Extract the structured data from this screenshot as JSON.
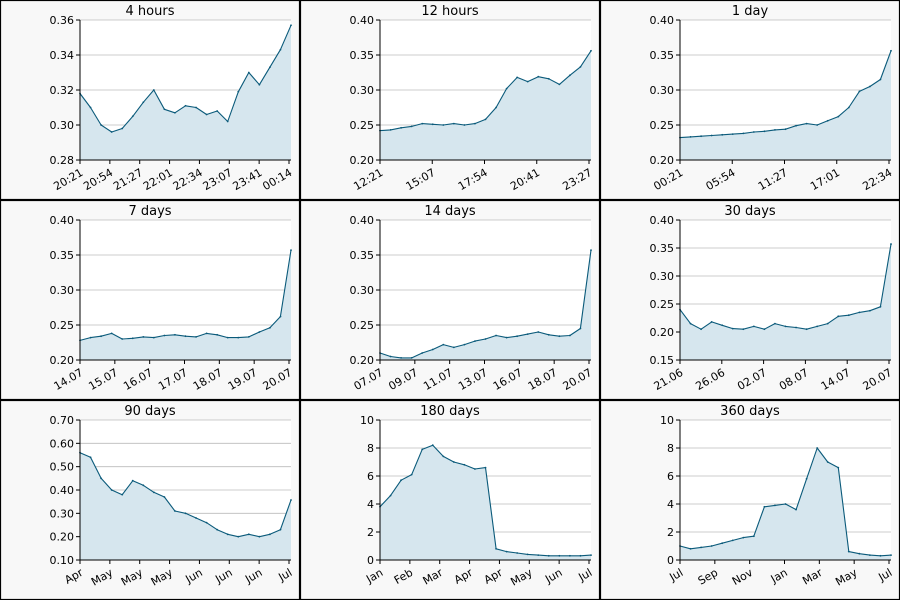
{
  "colors": {
    "line": "#0a5a7a",
    "fill": "#d6e6ee",
    "grid": "#bbbbbb",
    "panel_bg": "#f8f8f8",
    "plot_bg": "#ffffff",
    "border": "#000000"
  },
  "chart_data": [
    {
      "type": "area",
      "title": "4 hours",
      "x_ticks": [
        "20:21",
        "20:54",
        "21:27",
        "22:01",
        "22:34",
        "23:07",
        "23:41",
        "00:14"
      ],
      "y_ticks": [
        "0.28",
        "0.30",
        "0.32",
        "0.34",
        "0.36"
      ],
      "ylim": [
        0.28,
        0.36
      ],
      "grid": true,
      "series": [
        {
          "x": [
            0,
            5,
            10,
            15,
            20,
            25,
            30,
            35,
            40,
            45,
            50,
            55,
            60,
            65,
            70,
            75,
            80,
            85,
            90,
            95,
            100
          ],
          "y": [
            0.318,
            0.31,
            0.3,
            0.296,
            0.298,
            0.305,
            0.313,
            0.32,
            0.309,
            0.307,
            0.311,
            0.31,
            0.306,
            0.308,
            0.302,
            0.319,
            0.33,
            0.323,
            0.333,
            0.343,
            0.357
          ]
        }
      ]
    },
    {
      "type": "area",
      "title": "12 hours",
      "x_ticks": [
        "12:21",
        "15:07",
        "17:54",
        "20:41",
        "23:27"
      ],
      "y_ticks": [
        "0.20",
        "0.25",
        "0.30",
        "0.35",
        "0.40"
      ],
      "ylim": [
        0.2,
        0.4
      ],
      "grid": true,
      "series": [
        {
          "x": [
            0,
            5,
            10,
            15,
            20,
            25,
            30,
            35,
            40,
            45,
            50,
            55,
            60,
            65,
            70,
            75,
            80,
            85,
            90,
            95,
            100
          ],
          "y": [
            0.242,
            0.243,
            0.246,
            0.248,
            0.252,
            0.251,
            0.25,
            0.252,
            0.25,
            0.252,
            0.258,
            0.275,
            0.302,
            0.318,
            0.312,
            0.319,
            0.316,
            0.308,
            0.321,
            0.333,
            0.356
          ]
        }
      ]
    },
    {
      "type": "area",
      "title": "1 day",
      "x_ticks": [
        "00:21",
        "05:54",
        "11:27",
        "17:01",
        "22:34"
      ],
      "y_ticks": [
        "0.20",
        "0.25",
        "0.30",
        "0.35",
        "0.40"
      ],
      "ylim": [
        0.2,
        0.4
      ],
      "grid": true,
      "series": [
        {
          "x": [
            0,
            5,
            10,
            15,
            20,
            25,
            30,
            35,
            40,
            45,
            50,
            55,
            60,
            65,
            70,
            75,
            80,
            85,
            90,
            95,
            100
          ],
          "y": [
            0.232,
            0.233,
            0.234,
            0.235,
            0.236,
            0.237,
            0.238,
            0.24,
            0.241,
            0.243,
            0.244,
            0.249,
            0.252,
            0.25,
            0.256,
            0.262,
            0.275,
            0.298,
            0.305,
            0.315,
            0.356
          ]
        }
      ]
    },
    {
      "type": "area",
      "title": "7 days",
      "x_ticks": [
        "14.07",
        "15.07",
        "16.07",
        "17.07",
        "18.07",
        "19.07",
        "20.07"
      ],
      "y_ticks": [
        "0.20",
        "0.25",
        "0.30",
        "0.35",
        "0.40"
      ],
      "ylim": [
        0.2,
        0.4
      ],
      "grid": true,
      "series": [
        {
          "x": [
            0,
            5,
            10,
            15,
            20,
            25,
            30,
            35,
            40,
            45,
            50,
            55,
            60,
            65,
            70,
            75,
            80,
            85,
            90,
            95,
            100
          ],
          "y": [
            0.228,
            0.232,
            0.234,
            0.238,
            0.23,
            0.231,
            0.233,
            0.232,
            0.235,
            0.236,
            0.234,
            0.233,
            0.238,
            0.236,
            0.232,
            0.232,
            0.233,
            0.24,
            0.246,
            0.262,
            0.357
          ]
        }
      ]
    },
    {
      "type": "area",
      "title": "14 days",
      "x_ticks": [
        "07.07",
        "09.07",
        "11.07",
        "13.07",
        "16.07",
        "18.07",
        "20.07"
      ],
      "y_ticks": [
        "0.20",
        "0.25",
        "0.30",
        "0.35",
        "0.40"
      ],
      "ylim": [
        0.2,
        0.4
      ],
      "grid": true,
      "series": [
        {
          "x": [
            0,
            5,
            10,
            15,
            20,
            25,
            30,
            35,
            40,
            45,
            50,
            55,
            60,
            65,
            70,
            75,
            80,
            85,
            90,
            95,
            100
          ],
          "y": [
            0.21,
            0.205,
            0.203,
            0.203,
            0.21,
            0.215,
            0.222,
            0.218,
            0.222,
            0.227,
            0.23,
            0.235,
            0.232,
            0.234,
            0.237,
            0.24,
            0.236,
            0.234,
            0.235,
            0.245,
            0.357
          ]
        }
      ]
    },
    {
      "type": "area",
      "title": "30 days",
      "x_ticks": [
        "21.06",
        "26.06",
        "02.07",
        "08.07",
        "14.07",
        "20.07"
      ],
      "y_ticks": [
        "0.15",
        "0.20",
        "0.25",
        "0.30",
        "0.35",
        "0.40"
      ],
      "ylim": [
        0.15,
        0.4
      ],
      "grid": true,
      "series": [
        {
          "x": [
            0,
            5,
            10,
            15,
            20,
            25,
            30,
            35,
            40,
            45,
            50,
            55,
            60,
            65,
            70,
            75,
            80,
            85,
            90,
            95,
            100
          ],
          "y": [
            0.24,
            0.215,
            0.205,
            0.218,
            0.212,
            0.206,
            0.205,
            0.21,
            0.205,
            0.215,
            0.21,
            0.208,
            0.205,
            0.21,
            0.215,
            0.228,
            0.23,
            0.235,
            0.238,
            0.245,
            0.357
          ]
        }
      ]
    },
    {
      "type": "area",
      "title": "90 days",
      "x_ticks": [
        "Apr",
        "May",
        "May",
        "May",
        "Jun",
        "Jun",
        "Jun",
        "Jul"
      ],
      "y_ticks": [
        "0.10",
        "0.20",
        "0.30",
        "0.40",
        "0.50",
        "0.60",
        "0.70"
      ],
      "ylim": [
        0.1,
        0.7
      ],
      "grid": true,
      "series": [
        {
          "x": [
            0,
            5,
            10,
            15,
            20,
            25,
            30,
            35,
            40,
            45,
            50,
            55,
            60,
            65,
            70,
            75,
            80,
            85,
            90,
            95,
            100
          ],
          "y": [
            0.56,
            0.54,
            0.45,
            0.4,
            0.38,
            0.44,
            0.42,
            0.39,
            0.37,
            0.31,
            0.3,
            0.28,
            0.26,
            0.23,
            0.21,
            0.2,
            0.21,
            0.2,
            0.21,
            0.23,
            0.357
          ]
        }
      ]
    },
    {
      "type": "area",
      "title": "180 days",
      "x_ticks": [
        "Jan",
        "Feb",
        "Mar",
        "Apr",
        "Apr",
        "May",
        "Jun",
        "Jul"
      ],
      "y_ticks": [
        "0",
        "2",
        "4",
        "6",
        "8",
        "10"
      ],
      "ylim": [
        0,
        10
      ],
      "grid": true,
      "series": [
        {
          "x": [
            0,
            5,
            10,
            15,
            20,
            25,
            30,
            35,
            40,
            45,
            50,
            55,
            60,
            65,
            70,
            75,
            80,
            85,
            90,
            95,
            100
          ],
          "y": [
            3.8,
            4.6,
            5.7,
            6.1,
            7.9,
            8.2,
            7.4,
            7.0,
            6.8,
            6.5,
            6.6,
            0.8,
            0.6,
            0.5,
            0.4,
            0.35,
            0.3,
            0.3,
            0.3,
            0.3,
            0.35
          ]
        }
      ]
    },
    {
      "type": "area",
      "title": "360 days",
      "x_ticks": [
        "Jul",
        "Sep",
        "Nov",
        "Jan",
        "Mar",
        "May",
        "Jul"
      ],
      "y_ticks": [
        "0",
        "2",
        "4",
        "6",
        "8",
        "10"
      ],
      "ylim": [
        0,
        10
      ],
      "grid": true,
      "series": [
        {
          "x": [
            0,
            5,
            10,
            15,
            20,
            25,
            30,
            35,
            40,
            45,
            50,
            55,
            60,
            65,
            70,
            75,
            80,
            85,
            90,
            95,
            100
          ],
          "y": [
            1.0,
            0.8,
            0.9,
            1.0,
            1.2,
            1.4,
            1.6,
            1.7,
            3.8,
            3.9,
            4.0,
            3.6,
            5.8,
            8.0,
            7.0,
            6.6,
            0.6,
            0.45,
            0.35,
            0.3,
            0.35
          ]
        }
      ]
    }
  ]
}
